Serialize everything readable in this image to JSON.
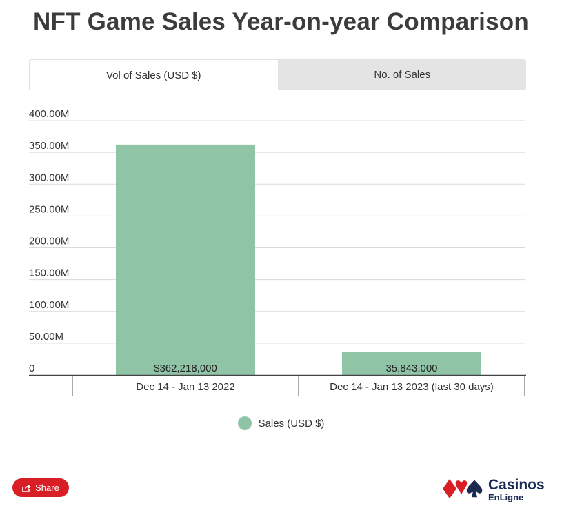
{
  "title": "NFT Game Sales Year-on-year Comparison",
  "tabs": [
    {
      "label": "Vol of Sales (USD $)",
      "active": true
    },
    {
      "label": "No. of Sales",
      "active": false
    }
  ],
  "chart_data": {
    "type": "bar",
    "categories": [
      "Dec 14 - Jan 13 2022",
      "Dec 14 - Jan 13 2023 (last 30 days)"
    ],
    "series": [
      {
        "name": "Sales (USD $)",
        "values": [
          362218000,
          35843000
        ]
      }
    ],
    "data_labels": [
      "$362,218,000",
      "35,843,000"
    ],
    "y_ticks": [
      0,
      50000000,
      100000000,
      150000000,
      200000000,
      250000000,
      300000000,
      350000000,
      400000000
    ],
    "y_tick_labels": [
      "0",
      "50.00M",
      "100.00M",
      "150.00M",
      "200.00M",
      "250.00M",
      "300.00M",
      "350.00M",
      "400.00M"
    ],
    "ylim": [
      0,
      400000000
    ],
    "grid": true,
    "legend_position": "bottom",
    "bar_color": "#8fc4a7"
  },
  "legend": {
    "label": "Sales (USD $)",
    "color": "#8fc4a7"
  },
  "share": {
    "label": "Share",
    "icon": "share-icon"
  },
  "logo": {
    "name": "Casinos",
    "sub": "EnLigne",
    "icon": "card-suits-icon"
  }
}
